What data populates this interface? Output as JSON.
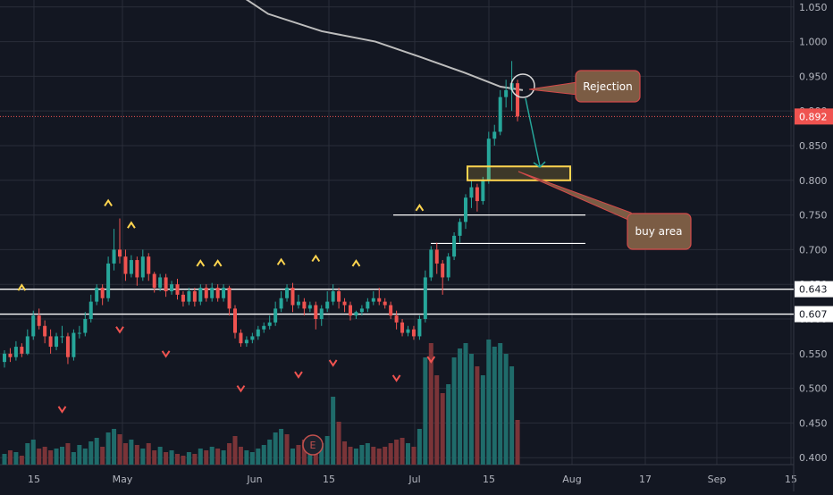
{
  "chart_data": {
    "type": "candlestick",
    "theme": {
      "background": "#131722",
      "grid": "#2a2e39",
      "text": "#b2b5be",
      "up": "#26a69a",
      "down": "#ef5350",
      "vol_up": "#1f6b6a",
      "vol_down": "#7a3438",
      "ma": "#bdbdbd",
      "signal": "#ffd54f",
      "annot_fill": "#7b5c44",
      "annot_stroke": "#d44a4a",
      "buy_box": "#ffd54f",
      "price_tag": "#ef5350"
    },
    "y_axis": {
      "min": 0.39,
      "max": 1.06,
      "ticks": [
        "1.050",
        "1.000",
        "0.950",
        "0.900",
        "0.850",
        "0.800",
        "0.750",
        "0.700",
        "0.650",
        "0.600",
        "0.550",
        "0.500",
        "0.450",
        "0.400"
      ]
    },
    "x_axis": {
      "ticks": [
        "15",
        "May",
        "Jun",
        "15",
        "Jul",
        "15",
        "Aug",
        "17",
        "Sep",
        "15"
      ]
    },
    "last_price": {
      "value": 0.892,
      "label": "0.892"
    },
    "support_levels": [
      {
        "value": 0.643,
        "label": "0.643"
      },
      {
        "value": 0.607,
        "label": "0.607"
      }
    ],
    "resistance_lines": [
      {
        "value": 0.75
      },
      {
        "value": 0.709
      }
    ],
    "buy_zone": {
      "low": 0.8,
      "high": 0.82
    },
    "moving_average": [
      1.07,
      1.04,
      1.015,
      1.0,
      0.978,
      0.955,
      0.935,
      0.93
    ],
    "candles": [
      [
        0.538,
        0.55,
        0.555,
        0.53
      ],
      [
        0.55,
        0.545,
        0.558,
        0.538
      ],
      [
        0.545,
        0.56,
        0.568,
        0.54
      ],
      [
        0.56,
        0.55,
        0.565,
        0.545
      ],
      [
        0.55,
        0.575,
        0.585,
        0.548
      ],
      [
        0.575,
        0.605,
        0.612,
        0.57
      ],
      [
        0.605,
        0.59,
        0.615,
        0.585
      ],
      [
        0.59,
        0.575,
        0.598,
        0.565
      ],
      [
        0.575,
        0.56,
        0.585,
        0.55
      ],
      [
        0.56,
        0.575,
        0.58,
        0.555
      ],
      [
        0.575,
        0.575,
        0.59,
        0.565
      ],
      [
        0.575,
        0.545,
        0.58,
        0.535
      ],
      [
        0.545,
        0.58,
        0.585,
        0.54
      ],
      [
        0.58,
        0.58,
        0.59,
        0.572
      ],
      [
        0.58,
        0.6,
        0.61,
        0.575
      ],
      [
        0.6,
        0.625,
        0.635,
        0.595
      ],
      [
        0.625,
        0.645,
        0.65,
        0.62
      ],
      [
        0.645,
        0.63,
        0.65,
        0.62
      ],
      [
        0.63,
        0.68,
        0.69,
        0.625
      ],
      [
        0.68,
        0.7,
        0.73,
        0.67
      ],
      [
        0.7,
        0.69,
        0.745,
        0.68
      ],
      [
        0.69,
        0.665,
        0.7,
        0.655
      ],
      [
        0.665,
        0.685,
        0.692,
        0.66
      ],
      [
        0.685,
        0.66,
        0.69,
        0.648
      ],
      [
        0.66,
        0.69,
        0.7,
        0.655
      ],
      [
        0.69,
        0.665,
        0.695,
        0.655
      ],
      [
        0.665,
        0.645,
        0.668,
        0.638
      ],
      [
        0.645,
        0.66,
        0.665,
        0.64
      ],
      [
        0.66,
        0.64,
        0.665,
        0.632
      ],
      [
        0.64,
        0.65,
        0.655,
        0.635
      ],
      [
        0.65,
        0.635,
        0.658,
        0.628
      ],
      [
        0.635,
        0.625,
        0.64,
        0.618
      ],
      [
        0.625,
        0.64,
        0.645,
        0.62
      ],
      [
        0.64,
        0.625,
        0.645,
        0.618
      ],
      [
        0.625,
        0.645,
        0.65,
        0.62
      ],
      [
        0.645,
        0.63,
        0.65,
        0.625
      ],
      [
        0.63,
        0.645,
        0.652,
        0.625
      ],
      [
        0.645,
        0.63,
        0.65,
        0.625
      ],
      [
        0.63,
        0.645,
        0.65,
        0.625
      ],
      [
        0.645,
        0.615,
        0.648,
        0.605
      ],
      [
        0.615,
        0.58,
        0.62,
        0.572
      ],
      [
        0.58,
        0.565,
        0.585,
        0.56
      ],
      [
        0.565,
        0.57,
        0.575,
        0.56
      ],
      [
        0.57,
        0.575,
        0.58,
        0.565
      ],
      [
        0.575,
        0.585,
        0.59,
        0.57
      ],
      [
        0.585,
        0.59,
        0.595,
        0.58
      ],
      [
        0.59,
        0.595,
        0.605,
        0.585
      ],
      [
        0.595,
        0.615,
        0.625,
        0.59
      ],
      [
        0.615,
        0.63,
        0.64,
        0.61
      ],
      [
        0.63,
        0.645,
        0.65,
        0.625
      ],
      [
        0.645,
        0.62,
        0.652,
        0.61
      ],
      [
        0.62,
        0.625,
        0.635,
        0.615
      ],
      [
        0.625,
        0.615,
        0.63,
        0.605
      ],
      [
        0.615,
        0.62,
        0.625,
        0.61
      ],
      [
        0.62,
        0.6,
        0.625,
        0.585
      ],
      [
        0.6,
        0.615,
        0.62,
        0.59
      ],
      [
        0.615,
        0.625,
        0.64,
        0.61
      ],
      [
        0.625,
        0.64,
        0.65,
        0.62
      ],
      [
        0.64,
        0.625,
        0.645,
        0.615
      ],
      [
        0.625,
        0.62,
        0.63,
        0.61
      ],
      [
        0.62,
        0.605,
        0.625,
        0.598
      ],
      [
        0.605,
        0.61,
        0.612,
        0.6
      ],
      [
        0.61,
        0.615,
        0.62,
        0.605
      ],
      [
        0.615,
        0.625,
        0.63,
        0.61
      ],
      [
        0.625,
        0.63,
        0.64,
        0.62
      ],
      [
        0.63,
        0.625,
        0.645,
        0.62
      ],
      [
        0.625,
        0.62,
        0.63,
        0.615
      ],
      [
        0.62,
        0.605,
        0.625,
        0.6
      ],
      [
        0.605,
        0.595,
        0.612,
        0.585
      ],
      [
        0.595,
        0.58,
        0.6,
        0.575
      ],
      [
        0.58,
        0.585,
        0.59,
        0.575
      ],
      [
        0.585,
        0.575,
        0.59,
        0.57
      ],
      [
        0.575,
        0.6,
        0.605,
        0.57
      ],
      [
        0.6,
        0.66,
        0.67,
        0.595
      ],
      [
        0.66,
        0.7,
        0.705,
        0.655
      ],
      [
        0.7,
        0.68,
        0.71,
        0.665
      ],
      [
        0.68,
        0.66,
        0.685,
        0.635
      ],
      [
        0.66,
        0.69,
        0.695,
        0.655
      ],
      [
        0.69,
        0.72,
        0.725,
        0.685
      ],
      [
        0.72,
        0.74,
        0.745,
        0.71
      ],
      [
        0.74,
        0.775,
        0.78,
        0.73
      ],
      [
        0.775,
        0.79,
        0.8,
        0.76
      ],
      [
        0.79,
        0.77,
        0.795,
        0.755
      ],
      [
        0.77,
        0.8,
        0.805,
        0.765
      ],
      [
        0.8,
        0.86,
        0.87,
        0.795
      ],
      [
        0.86,
        0.87,
        0.88,
        0.85
      ],
      [
        0.87,
        0.92,
        0.93,
        0.865
      ],
      [
        0.92,
        0.93,
        0.945,
        0.905
      ],
      [
        0.93,
        0.94,
        0.972,
        0.9
      ],
      [
        0.94,
        0.892,
        0.945,
        0.885
      ]
    ],
    "volume": [
      [
        6,
        0
      ],
      [
        8,
        1
      ],
      [
        7,
        0
      ],
      [
        5,
        1
      ],
      [
        12,
        0
      ],
      [
        14,
        0
      ],
      [
        9,
        1
      ],
      [
        10,
        1
      ],
      [
        8,
        1
      ],
      [
        9,
        0
      ],
      [
        10,
        0
      ],
      [
        12,
        1
      ],
      [
        7,
        0
      ],
      [
        11,
        0
      ],
      [
        9,
        0
      ],
      [
        13,
        0
      ],
      [
        15,
        0
      ],
      [
        10,
        1
      ],
      [
        18,
        0
      ],
      [
        20,
        0
      ],
      [
        17,
        1
      ],
      [
        12,
        1
      ],
      [
        14,
        0
      ],
      [
        11,
        1
      ],
      [
        9,
        0
      ],
      [
        12,
        1
      ],
      [
        8,
        1
      ],
      [
        10,
        0
      ],
      [
        7,
        1
      ],
      [
        8,
        0
      ],
      [
        6,
        1
      ],
      [
        5,
        1
      ],
      [
        7,
        0
      ],
      [
        6,
        1
      ],
      [
        9,
        0
      ],
      [
        8,
        1
      ],
      [
        10,
        0
      ],
      [
        9,
        1
      ],
      [
        8,
        0
      ],
      [
        12,
        1
      ],
      [
        16,
        1
      ],
      [
        10,
        1
      ],
      [
        8,
        0
      ],
      [
        7,
        0
      ],
      [
        9,
        0
      ],
      [
        11,
        0
      ],
      [
        14,
        0
      ],
      [
        18,
        0
      ],
      [
        20,
        0
      ],
      [
        17,
        1
      ],
      [
        9,
        0
      ],
      [
        11,
        1
      ],
      [
        14,
        1
      ],
      [
        10,
        0
      ],
      [
        15,
        1
      ],
      [
        12,
        0
      ],
      [
        16,
        0
      ],
      [
        38,
        0
      ],
      [
        24,
        1
      ],
      [
        13,
        1
      ],
      [
        10,
        1
      ],
      [
        9,
        0
      ],
      [
        11,
        0
      ],
      [
        12,
        0
      ],
      [
        10,
        1
      ],
      [
        9,
        1
      ],
      [
        10,
        1
      ],
      [
        12,
        1
      ],
      [
        14,
        1
      ],
      [
        15,
        1
      ],
      [
        12,
        0
      ],
      [
        10,
        1
      ],
      [
        20,
        0
      ],
      [
        60,
        0
      ],
      [
        68,
        1
      ],
      [
        50,
        1
      ],
      [
        40,
        1
      ],
      [
        45,
        0
      ],
      [
        60,
        0
      ],
      [
        65,
        0
      ],
      [
        68,
        0
      ],
      [
        62,
        0
      ],
      [
        55,
        1
      ],
      [
        50,
        0
      ],
      [
        70,
        0
      ],
      [
        66,
        0
      ],
      [
        68,
        0
      ],
      [
        62,
        0
      ],
      [
        55,
        0
      ],
      [
        25,
        1
      ]
    ],
    "up_markers": [
      [
        3,
        0.645
      ],
      [
        18,
        0.767
      ],
      [
        22,
        0.735
      ],
      [
        34,
        0.68
      ],
      [
        37,
        0.68
      ],
      [
        48,
        0.682
      ],
      [
        54,
        0.687
      ],
      [
        61,
        0.68
      ],
      [
        72,
        0.76
      ]
    ],
    "down_markers": [
      [
        10,
        0.47
      ],
      [
        20,
        0.585
      ],
      [
        28,
        0.55
      ],
      [
        41,
        0.5
      ],
      [
        51,
        0.52
      ],
      [
        57,
        0.537
      ],
      [
        68,
        0.515
      ],
      [
        74,
        0.542
      ]
    ],
    "annotations": [
      {
        "text": "Rejection"
      },
      {
        "text": "buy area"
      }
    ],
    "event_marker": "E"
  }
}
